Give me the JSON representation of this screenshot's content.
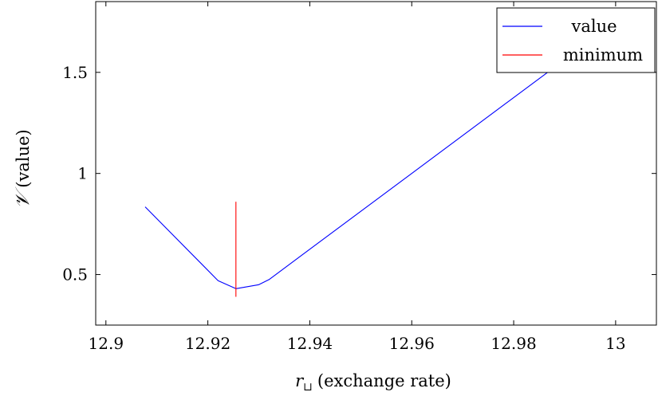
{
  "chart_data": {
    "type": "line",
    "title": "",
    "xlabel": "(exchange rate)",
    "xlabel_symbol": "r",
    "xlabel_subscript": "⊔",
    "ylabel": "(value)",
    "ylabel_symbol": "𝒱",
    "xlim": [
      12.898,
      13.008
    ],
    "ylim": [
      0.25,
      1.85
    ],
    "x_ticks": [
      12.9,
      12.92,
      12.94,
      12.96,
      12.98,
      13
    ],
    "x_tick_labels": [
      "12.9",
      "12.92",
      "12.94",
      "12.96",
      "12.98",
      "13"
    ],
    "y_ticks": [
      0.5,
      1,
      1.5
    ],
    "y_tick_labels": [
      "0.5",
      "1",
      "1.5"
    ],
    "grid": false,
    "legend_position": "top-right",
    "series": [
      {
        "name": "value",
        "color": "#0000ff",
        "x": [
          12.9077,
          12.922,
          12.9255,
          12.93,
          12.932,
          12.992
        ],
        "y": [
          0.835,
          0.47,
          0.43,
          0.45,
          0.475,
          1.6
        ]
      },
      {
        "name": "minimum",
        "color": "#ff0000",
        "kind": "vertical-line",
        "x": [
          12.9255,
          12.9255
        ],
        "y": [
          0.39,
          0.86
        ]
      }
    ]
  }
}
